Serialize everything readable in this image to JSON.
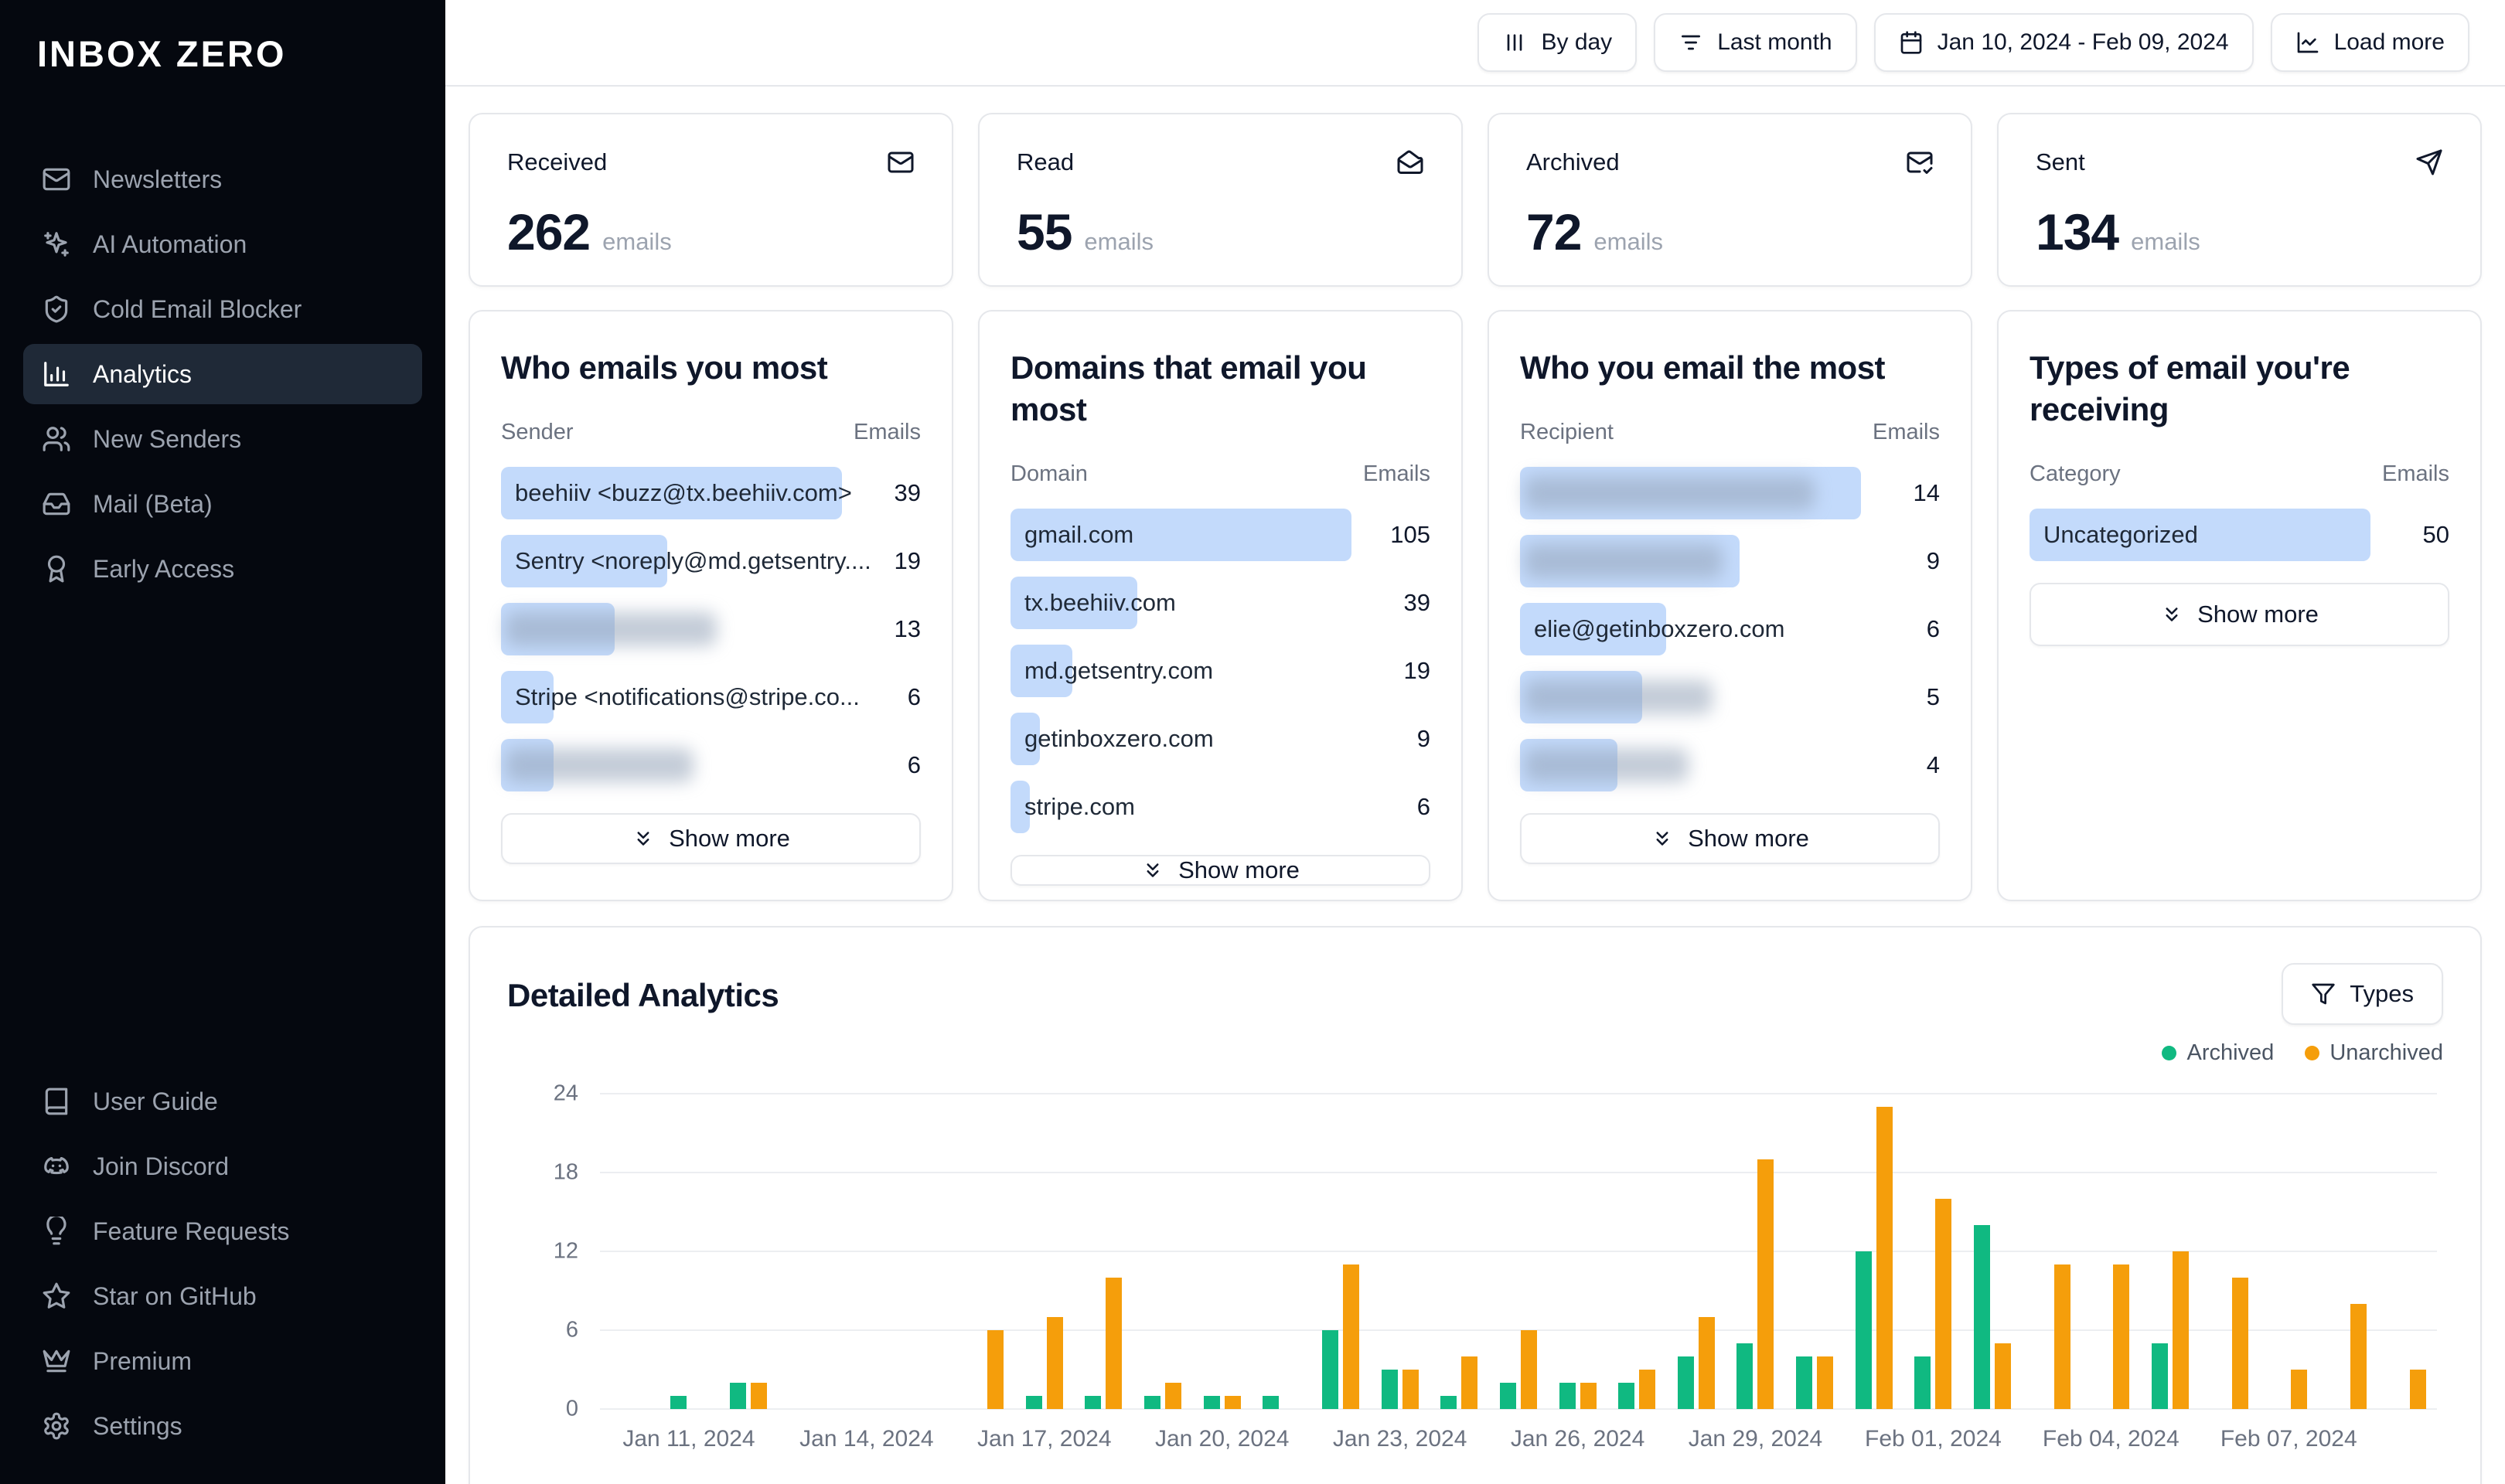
{
  "app_title": "INBOX ZERO",
  "colors": {
    "sidebar_bg": "#05080f",
    "active_item_bg": "#1f2937",
    "accent_pill": "#c3dafb",
    "archived": "#10b981",
    "unarchived": "#f59e0b",
    "border": "#e5e7eb"
  },
  "sidebar": {
    "logo": "INBOX ZERO",
    "main": [
      {
        "label": "Newsletters",
        "icon": "mail-icon",
        "active": false
      },
      {
        "label": "AI Automation",
        "icon": "sparkles-icon",
        "active": false
      },
      {
        "label": "Cold Email Blocker",
        "icon": "shield-check-icon",
        "active": false
      },
      {
        "label": "Analytics",
        "icon": "bar-chart-icon",
        "active": true
      },
      {
        "label": "New Senders",
        "icon": "users-icon",
        "active": false
      },
      {
        "label": "Mail (Beta)",
        "icon": "inbox-icon",
        "active": false
      },
      {
        "label": "Early Access",
        "icon": "ribbon-icon",
        "active": false
      }
    ],
    "footer": [
      {
        "label": "User Guide",
        "icon": "book-icon"
      },
      {
        "label": "Join Discord",
        "icon": "discord-icon"
      },
      {
        "label": "Feature Requests",
        "icon": "lightbulb-icon"
      },
      {
        "label": "Star on GitHub",
        "icon": "star-icon"
      },
      {
        "label": "Premium",
        "icon": "crown-icon"
      },
      {
        "label": "Settings",
        "icon": "gear-icon"
      }
    ]
  },
  "topbar": {
    "buttons": [
      {
        "label": "By day",
        "icon": "columns-icon"
      },
      {
        "label": "Last month",
        "icon": "filter-lines-icon"
      },
      {
        "label": "Jan 10, 2024 - Feb 09, 2024",
        "icon": "calendar-icon"
      },
      {
        "label": "Load more",
        "icon": "chart-line-icon"
      }
    ]
  },
  "stats": [
    {
      "label": "Received",
      "value": "262",
      "unit": "emails",
      "icon": "mail-icon"
    },
    {
      "label": "Read",
      "value": "55",
      "unit": "emails",
      "icon": "mail-open-icon"
    },
    {
      "label": "Archived",
      "value": "72",
      "unit": "emails",
      "icon": "mail-check-icon"
    },
    {
      "label": "Sent",
      "value": "134",
      "unit": "emails",
      "icon": "send-icon"
    }
  ],
  "panels": [
    {
      "title": "Who emails you most",
      "col1": "Sender",
      "col2": "Emails",
      "show_more": "Show more",
      "max": 39,
      "rows": [
        {
          "label": "beehiiv <buzz@tx.beehiiv.com>",
          "value": 39
        },
        {
          "label": "Sentry <noreply@md.getsentry....",
          "value": 19
        },
        {
          "label": "",
          "value": 13,
          "redacted": true,
          "blur_pct": 62
        },
        {
          "label": "Stripe <notifications@stripe.co...",
          "value": 6
        },
        {
          "label": "",
          "value": 6,
          "redacted": true,
          "blur_pct": 55
        }
      ]
    },
    {
      "title": "Domains that email you most",
      "col1": "Domain",
      "col2": "Emails",
      "show_more": "Show more",
      "max": 105,
      "rows": [
        {
          "label": "gmail.com",
          "value": 105
        },
        {
          "label": "tx.beehiiv.com",
          "value": 39
        },
        {
          "label": "md.getsentry.com",
          "value": 19
        },
        {
          "label": "getinboxzero.com",
          "value": 9
        },
        {
          "label": "stripe.com",
          "value": 6
        }
      ]
    },
    {
      "title": "Who you email the most",
      "col1": "Recipient",
      "col2": "Emails",
      "show_more": "Show more",
      "max": 14,
      "rows": [
        {
          "label": "",
          "value": 14,
          "redacted": true,
          "blur_pct": 85
        },
        {
          "label": "",
          "value": 9,
          "redacted": true,
          "blur_pct": 58
        },
        {
          "label": "elie@getinboxzero.com",
          "value": 6
        },
        {
          "label": "",
          "value": 5,
          "redacted": true,
          "blur_pct": 55
        },
        {
          "label": "",
          "value": 4,
          "redacted": true,
          "blur_pct": 48
        }
      ]
    },
    {
      "title": "Types of email you're receiving",
      "col1": "Category",
      "col2": "Emails",
      "show_more": "Show more",
      "max": 50,
      "rows": [
        {
          "label": "Uncategorized",
          "value": 50
        }
      ]
    }
  ],
  "detailed": {
    "title": "Detailed Analytics",
    "types_button": "Types",
    "legend": [
      {
        "label": "Archived",
        "color": "#10b981"
      },
      {
        "label": "Unarchived",
        "color": "#f59e0b"
      }
    ]
  },
  "chart_data": {
    "type": "bar",
    "title": "Detailed Analytics",
    "x": [
      "Jan 10, 2024",
      "Jan 11, 2024",
      "Jan 12, 2024",
      "Jan 13, 2024",
      "Jan 14, 2024",
      "Jan 15, 2024",
      "Jan 16, 2024",
      "Jan 17, 2024",
      "Jan 18, 2024",
      "Jan 19, 2024",
      "Jan 20, 2024",
      "Jan 21, 2024",
      "Jan 22, 2024",
      "Jan 23, 2024",
      "Jan 24, 2024",
      "Jan 25, 2024",
      "Jan 26, 2024",
      "Jan 27, 2024",
      "Jan 28, 2024",
      "Jan 29, 2024",
      "Jan 30, 2024",
      "Jan 31, 2024",
      "Feb 01, 2024",
      "Feb 02, 2024",
      "Feb 03, 2024",
      "Feb 04, 2024",
      "Feb 05, 2024",
      "Feb 06, 2024",
      "Feb 07, 2024",
      "Feb 08, 2024",
      "Feb 09, 2024"
    ],
    "series": [
      {
        "name": "Archived",
        "color": "#10b981",
        "values": [
          0,
          1,
          2,
          0,
          0,
          0,
          0,
          1,
          1,
          1,
          1,
          1,
          6,
          3,
          1,
          2,
          2,
          2,
          4,
          5,
          4,
          12,
          4,
          14,
          0,
          0,
          5,
          0,
          0,
          0,
          0
        ]
      },
      {
        "name": "Unarchived",
        "color": "#f59e0b",
        "values": [
          0,
          0,
          2,
          0,
          0,
          0,
          6,
          7,
          10,
          2,
          1,
          0,
          11,
          3,
          4,
          6,
          2,
          3,
          7,
          19,
          4,
          23,
          16,
          5,
          11,
          11,
          12,
          10,
          3,
          8,
          3
        ]
      }
    ],
    "xlabel": "",
    "ylabel": "",
    "ylim": [
      0,
      24
    ],
    "yticks": [
      0,
      6,
      12,
      18,
      24
    ],
    "xtick_indices": [
      1,
      4,
      7,
      10,
      13,
      16,
      19,
      22,
      25,
      28
    ],
    "grid": true,
    "legend_position": "top-right"
  }
}
